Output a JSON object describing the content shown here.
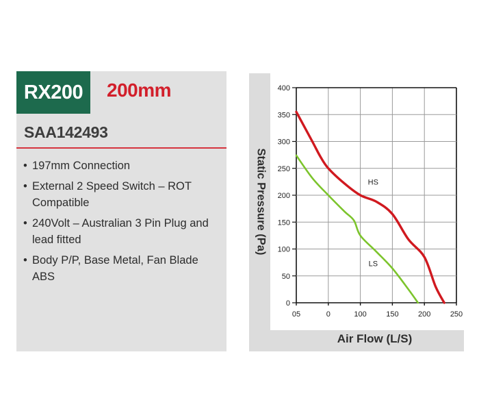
{
  "product": {
    "model": "RX200",
    "size": "200mm",
    "code": "SAA142493",
    "features": [
      "197mm Connection",
      "External 2 Speed Switch – ROT Compatible",
      "240Volt – Australian 3 Pin Plug and lead fitted",
      "Body P/P, Base Metal, Fan Blade ABS"
    ],
    "bullet": "•"
  },
  "colors": {
    "model_bg": "#1d6a4d",
    "size_text": "#d21f2b",
    "hs_line": "#d0191f",
    "ls_line": "#7cc42c",
    "panel_bg": "#e1e1e1"
  },
  "chart_data": {
    "type": "line",
    "title": "",
    "xlabel": "Air Flow (L/S)",
    "ylabel": "Static Pressure (Pa)",
    "x_tick_labels": [
      "05",
      "0",
      "100",
      "150",
      "200",
      "250"
    ],
    "y_tick_labels": [
      "0",
      "50",
      "100",
      "150",
      "200",
      "250",
      "300",
      "350",
      "400"
    ],
    "ylim": [
      0,
      400
    ],
    "grid": true,
    "legend": "inline labels",
    "annotations": [
      {
        "text": "HS",
        "x_index": 2.4,
        "y": 220
      },
      {
        "text": "LS",
        "x_index": 2.4,
        "y": 68
      }
    ],
    "series": [
      {
        "name": "HS",
        "color": "#d0191f",
        "x_index": [
          0,
          0.5,
          0.75,
          1.0,
          1.5,
          2.0,
          2.5,
          3.0,
          3.5,
          4.0,
          4.35,
          4.62
        ],
        "values": [
          355,
          300,
          272,
          250,
          222,
          200,
          188,
          165,
          118,
          85,
          30,
          0
        ]
      },
      {
        "name": "LS",
        "color": "#7cc42c",
        "x_index": [
          0,
          0.5,
          1.0,
          1.5,
          1.8,
          2.0,
          2.5,
          3.0,
          3.5,
          3.8
        ],
        "values": [
          274,
          232,
          200,
          170,
          153,
          125,
          95,
          64,
          25,
          0
        ]
      }
    ]
  }
}
